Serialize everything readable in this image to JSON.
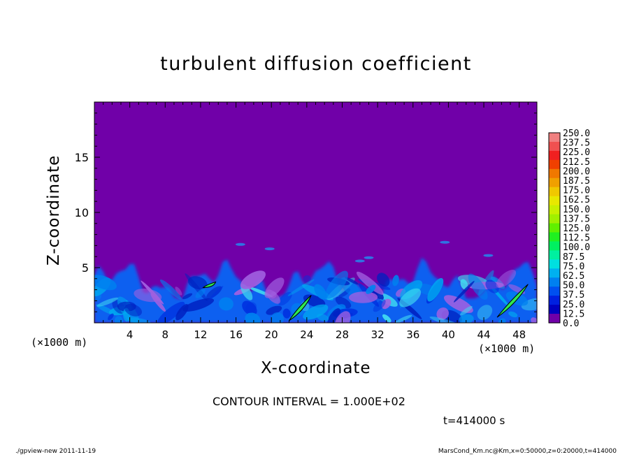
{
  "chart_data": {
    "type": "heatmap",
    "title": "turbulent diffusion coefficient",
    "xlabel": "X-coordinate",
    "ylabel": "Z-coordinate",
    "x_unit_label_left": "(×1000 m)",
    "x_unit_label_right": "(×1000 m)",
    "xlim": [
      0,
      50
    ],
    "ylim": [
      0,
      20
    ],
    "x_ticks": [
      4,
      8,
      12,
      16,
      20,
      24,
      28,
      32,
      36,
      40,
      44,
      48
    ],
    "y_ticks": [
      5,
      10,
      15
    ],
    "colorbar": {
      "labels": [
        "250.0",
        "237.5",
        "225.0",
        "212.5",
        "200.0",
        "187.5",
        "175.0",
        "162.5",
        "150.0",
        "137.5",
        "125.0",
        "112.5",
        "100.0",
        "87.5",
        "75.0",
        "62.5",
        "50.0",
        "37.5",
        "25.0",
        "12.5",
        "0.0"
      ],
      "colors": [
        "#f08080",
        "#f05050",
        "#f02020",
        "#f04000",
        "#f07800",
        "#f0a000",
        "#f0c800",
        "#e8e800",
        "#c8f000",
        "#a0f000",
        "#60f000",
        "#20f020",
        "#00f060",
        "#00f0a0",
        "#00e0e0",
        "#00b0f0",
        "#0080f0",
        "#0050f0",
        "#0020e0",
        "#0000c0",
        "#7000a8"
      ]
    },
    "background_color": "#7000a8",
    "contour_interval": "CONTOUR INTERVAL = 1.000E+02",
    "time": "t=414000 s",
    "turbulent_layer_top_approx": 5,
    "contour_100_regions": [
      {
        "x": [
          22,
          24.5
        ],
        "z": [
          0.2,
          2.5
        ]
      },
      {
        "x": [
          12.3,
          13.7
        ],
        "z": [
          3.2,
          3.7
        ]
      },
      {
        "x": [
          45.5,
          49
        ],
        "z": [
          0.5,
          3.5
        ]
      }
    ]
  },
  "footer": {
    "left": "./gpview-new  2011-11-19",
    "right": "MarsCond_Km.nc@Km,x=0:50000,z=0:20000,t=414000"
  }
}
